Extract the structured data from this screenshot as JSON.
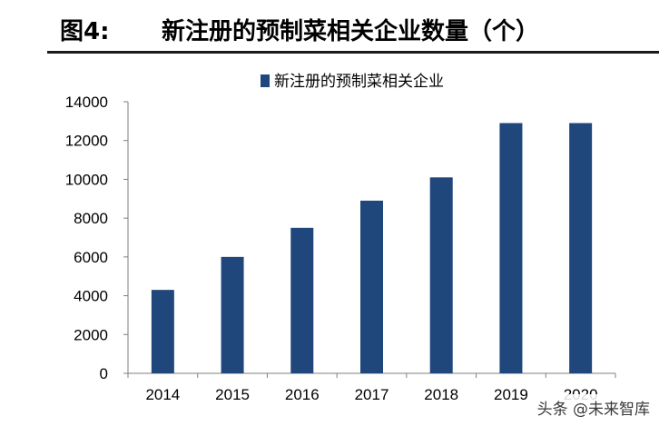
{
  "header": {
    "figure_label": "图4:",
    "title": "新注册的预制菜相关企业数量（个）"
  },
  "watermark": "头条 @未来智库",
  "colors": {
    "bar": "#1f477b",
    "axis": "#7f7f7f",
    "text": "#000000"
  },
  "chart_data": {
    "type": "bar",
    "categories": [
      "2014",
      "2015",
      "2016",
      "2017",
      "2018",
      "2019",
      "2020"
    ],
    "series": [
      {
        "name": "新注册的预制菜相关企业",
        "values": [
          4300,
          6000,
          7500,
          8900,
          10100,
          12900,
          12900
        ]
      }
    ],
    "y_ticks": [
      0,
      2000,
      4000,
      6000,
      8000,
      10000,
      12000,
      14000
    ],
    "ylim": [
      0,
      14000
    ],
    "legend_position": "top-center",
    "grid": false,
    "title": "",
    "xlabel": "",
    "ylabel": ""
  }
}
